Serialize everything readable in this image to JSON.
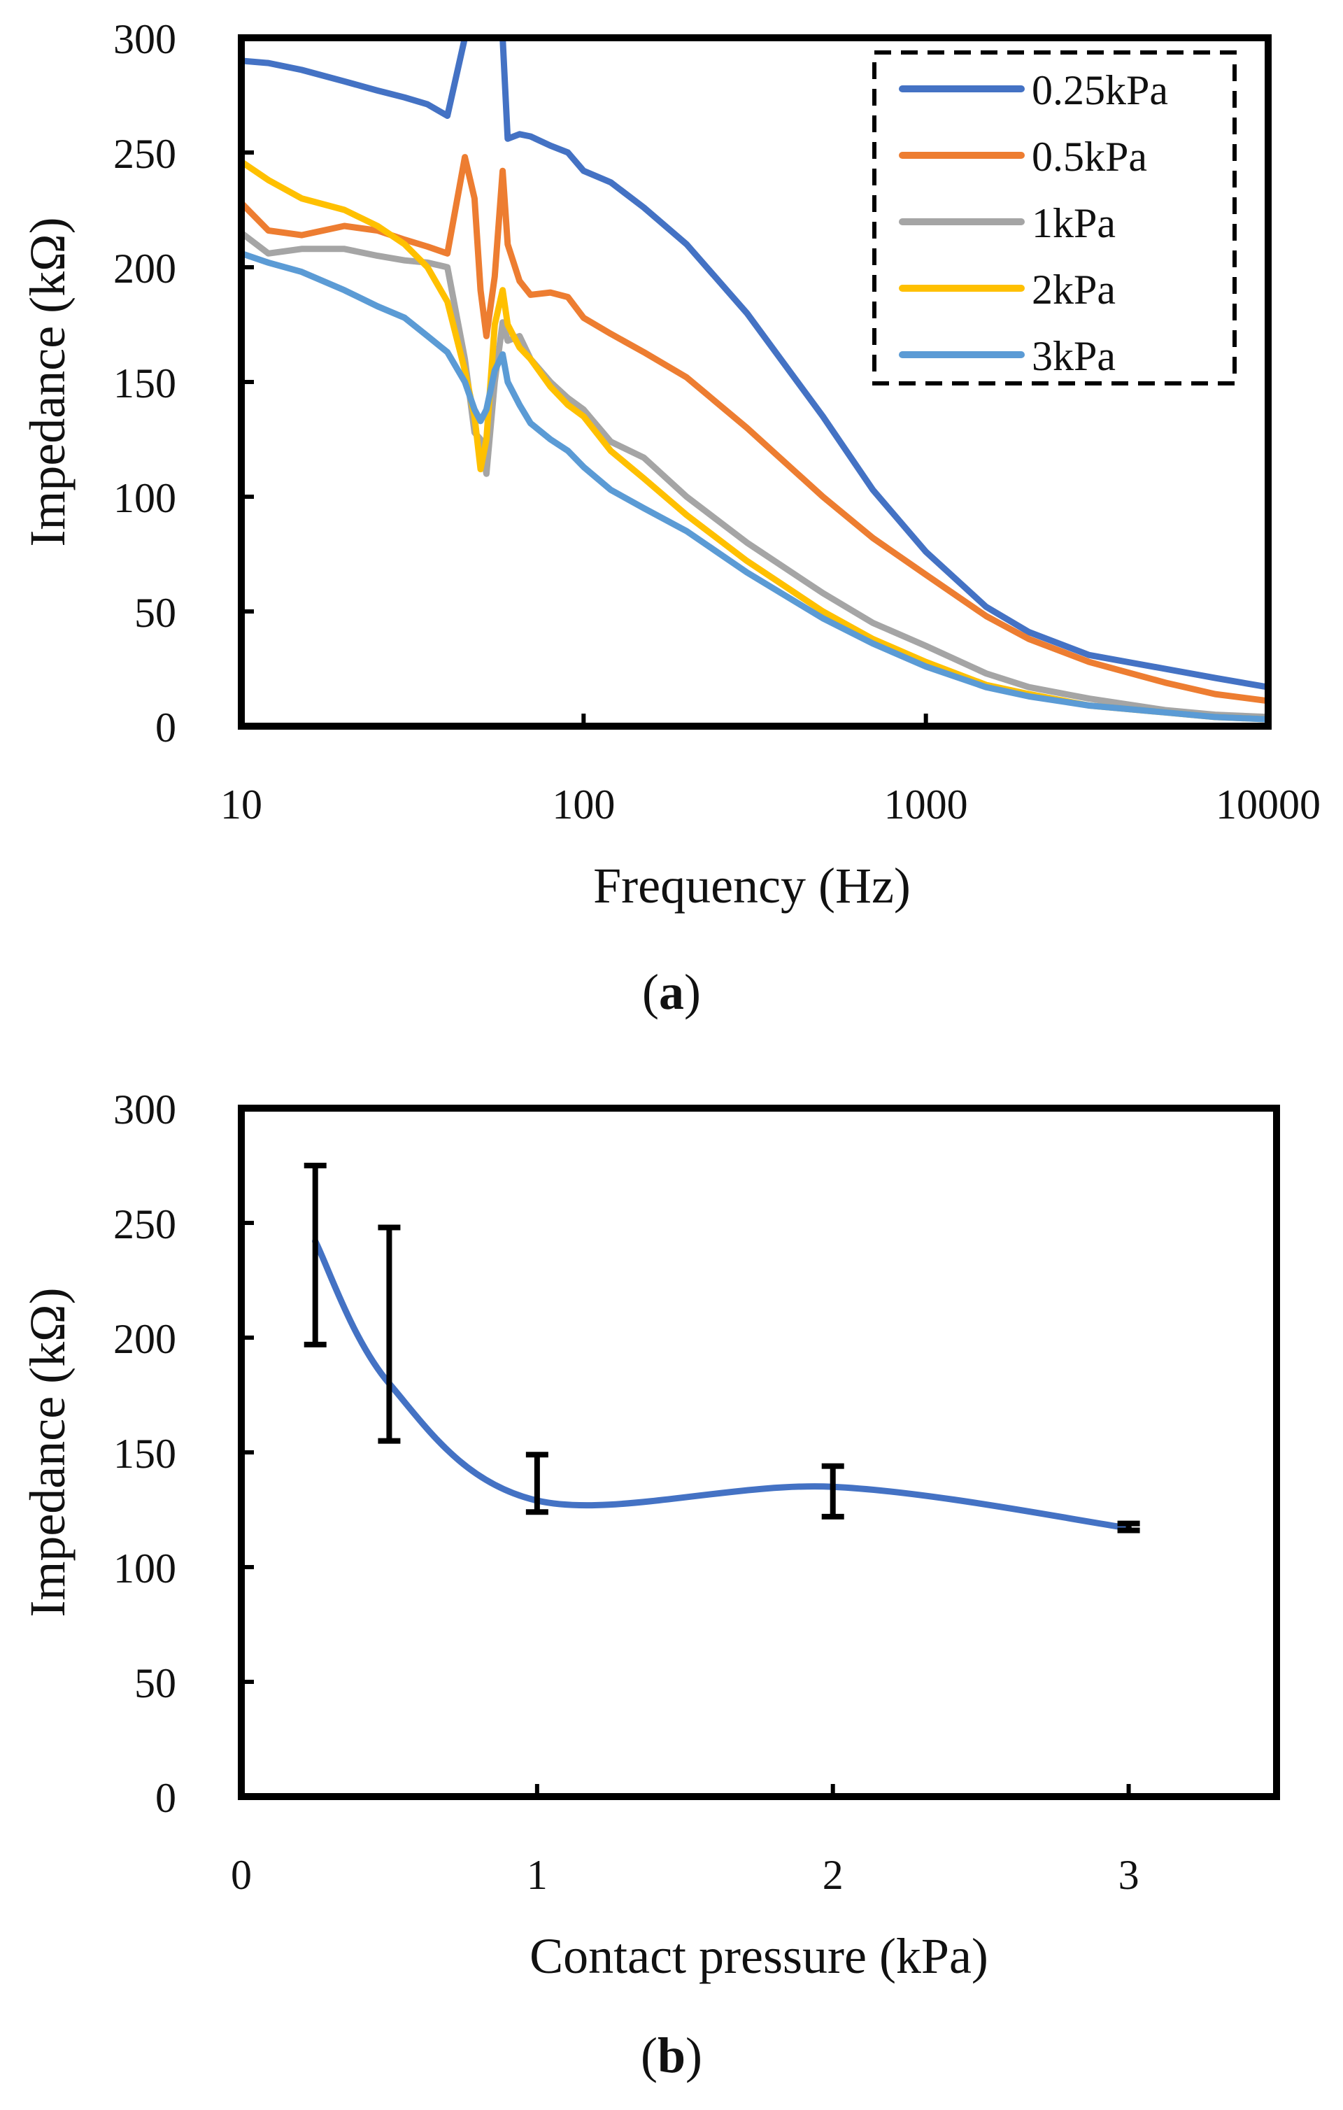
{
  "chart_data": [
    {
      "type": "line",
      "panel_label": "a",
      "title": "",
      "xlabel": "Frequency (Hz)",
      "ylabel": "Impedance (kΩ)",
      "xscale": "log",
      "xlim": [
        10,
        10000
      ],
      "ylim": [
        0,
        300
      ],
      "xticks": [
        10,
        100,
        1000,
        10000
      ],
      "yticks": [
        0,
        50,
        100,
        150,
        200,
        250,
        300
      ],
      "grid": false,
      "legend_position": "top-right",
      "x": [
        10,
        12,
        15,
        20,
        25,
        30,
        35,
        40,
        45,
        48,
        50,
        52,
        55,
        58,
        60,
        65,
        70,
        80,
        90,
        100,
        120,
        150,
        200,
        300,
        500,
        700,
        1000,
        1500,
        2000,
        3000,
        5000,
        7000,
        10000
      ],
      "series": [
        {
          "name": "0.25kPa",
          "color": "#4472C4",
          "values": [
            290,
            289,
            286,
            281,
            277,
            274,
            271,
            266,
            300,
            300,
            300,
            300,
            300,
            300,
            256,
            258,
            257,
            253,
            250,
            242,
            237,
            226,
            210,
            180,
            135,
            103,
            76,
            52,
            41,
            31,
            25,
            21,
            17
          ]
        },
        {
          "name": "0.5kPa",
          "color": "#ED7D31",
          "values": [
            228,
            216,
            214,
            218,
            216,
            212,
            209,
            206,
            248,
            230,
            190,
            170,
            196,
            242,
            210,
            194,
            188,
            189,
            187,
            178,
            171,
            163,
            152,
            130,
            100,
            82,
            66,
            48,
            38,
            28,
            19,
            14,
            11
          ]
        },
        {
          "name": "1kPa",
          "color": "#A5A5A5",
          "values": [
            215,
            206,
            208,
            208,
            205,
            203,
            202,
            200,
            160,
            128,
            125,
            110,
            150,
            176,
            168,
            170,
            160,
            150,
            143,
            138,
            124,
            117,
            100,
            80,
            58,
            45,
            35,
            23,
            17,
            12,
            7,
            5,
            4
          ]
        },
        {
          "name": "2kPa",
          "color": "#FFC000",
          "values": [
            246,
            238,
            230,
            225,
            218,
            210,
            200,
            185,
            155,
            135,
            112,
            125,
            175,
            190,
            175,
            165,
            160,
            148,
            140,
            135,
            120,
            108,
            92,
            72,
            50,
            38,
            28,
            18,
            14,
            9,
            6,
            4,
            3
          ]
        },
        {
          "name": "3kPa",
          "color": "#5B9BD5",
          "values": [
            206,
            202,
            198,
            190,
            183,
            178,
            170,
            163,
            150,
            138,
            133,
            138,
            155,
            162,
            150,
            140,
            132,
            125,
            120,
            113,
            103,
            95,
            85,
            67,
            47,
            36,
            26,
            17,
            13,
            9,
            6,
            4,
            3
          ]
        }
      ]
    },
    {
      "type": "line",
      "panel_label": "b",
      "title": "",
      "xlabel": "Contact pressure (kPa)",
      "ylabel": "Impedance (kΩ)",
      "xlim": [
        0,
        3.5
      ],
      "ylim": [
        0,
        300
      ],
      "xticks": [
        0,
        1,
        2,
        3
      ],
      "yticks": [
        0,
        50,
        100,
        150,
        200,
        250,
        300
      ],
      "grid": false,
      "series": [
        {
          "name": "Impedance",
          "color": "#4472C4",
          "smooth": true,
          "x": [
            0.25,
            0.5,
            1,
            2,
            3
          ],
          "values": [
            242,
            180,
            129,
            135,
            117
          ],
          "error_low": [
            197,
            155,
            124,
            122,
            116
          ],
          "error_high": [
            275,
            248,
            149,
            144,
            119
          ]
        }
      ]
    }
  ]
}
